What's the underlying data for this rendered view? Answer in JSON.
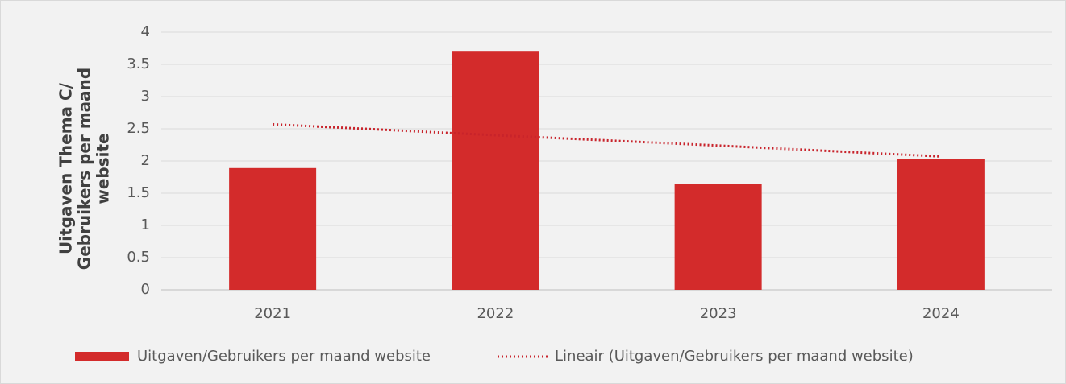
{
  "chart_data": {
    "type": "bar",
    "y_label": "Uitgaven Thema C/ Gebruikers per maand website",
    "categories": [
      "2021",
      "2022",
      "2023",
      "2024"
    ],
    "series": [
      {
        "name": "Uitgaven/Gebruikers per maand website",
        "color": "#d32b2b",
        "values": [
          1.89,
          3.71,
          1.65,
          2.03
        ]
      }
    ],
    "trendline": {
      "name": "Lineair (Uitgaven/Gebruikers per maand website)",
      "color": "#c8232b",
      "values": [
        2.57,
        2.4,
        2.24,
        2.07
      ]
    },
    "ylim": [
      0,
      4
    ],
    "yticks": [
      0,
      0.5,
      1,
      1.5,
      2,
      2.5,
      3,
      3.5,
      4
    ],
    "grid": true,
    "legend": "bottom"
  }
}
